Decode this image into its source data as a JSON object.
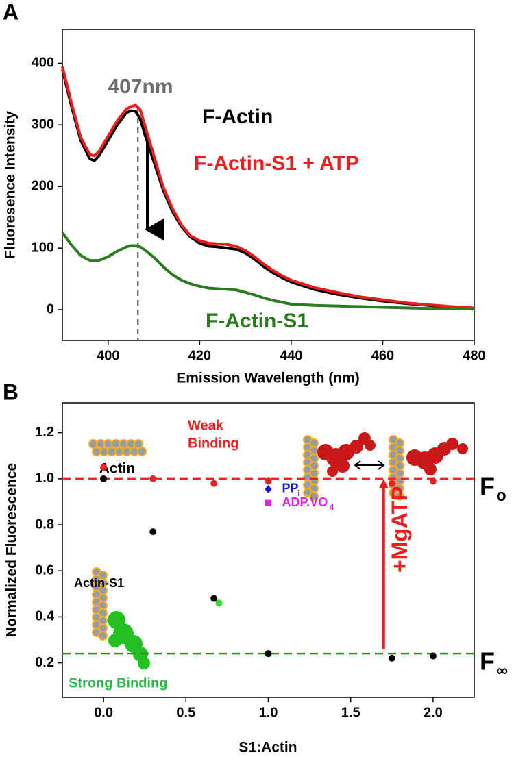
{
  "chart_data": [
    {
      "type": "line",
      "panel": "A",
      "x_label": "Emission Wavelength (nm)",
      "y_label": "Fluoresence Intensity",
      "xlim": [
        390,
        480
      ],
      "xticks": [
        400,
        420,
        440,
        460,
        480
      ],
      "ylim": [
        -50,
        455
      ],
      "yticks": [
        0,
        100,
        200,
        300,
        400
      ],
      "x": [
        390,
        392,
        394,
        396,
        397,
        398,
        400,
        402,
        404,
        405,
        406,
        407,
        408,
        410,
        412,
        414,
        416,
        418,
        420,
        422,
        424,
        426,
        428,
        430,
        432,
        434,
        436,
        438,
        440,
        445,
        450,
        455,
        460,
        465,
        470,
        475,
        480
      ],
      "series": [
        {
          "name": "F-Actin",
          "color": "#000000",
          "values": [
            390,
            330,
            275,
            245,
            242,
            250,
            275,
            300,
            320,
            323,
            322,
            310,
            285,
            240,
            195,
            160,
            135,
            118,
            108,
            103,
            102,
            100,
            98,
            92,
            82,
            70,
            60,
            52,
            45,
            33,
            25,
            19,
            14,
            10,
            7,
            4,
            2
          ]
        },
        {
          "name": "F-Actin-S1 + ATP",
          "color": "#ee1c1c",
          "values": [
            395,
            335,
            280,
            252,
            250,
            257,
            282,
            307,
            326,
            330,
            332,
            325,
            300,
            250,
            200,
            165,
            138,
            120,
            112,
            108,
            107,
            106,
            103,
            96,
            86,
            74,
            64,
            55,
            48,
            36,
            28,
            21,
            16,
            11,
            8,
            5,
            3
          ]
        },
        {
          "name": "F-Actin-S1",
          "color": "#2a7d1e",
          "values": [
            125,
            105,
            88,
            80,
            80,
            80,
            86,
            95,
            102,
            104,
            104,
            102,
            97,
            85,
            70,
            57,
            48,
            42,
            38,
            35,
            34,
            33,
            32,
            28,
            24,
            19,
            15,
            12,
            9,
            7,
            6,
            5,
            4,
            3,
            2,
            2,
            1
          ]
        }
      ],
      "annotations": [
        {
          "text": "407nm",
          "x": 406.5,
          "color": "#6e6e6e"
        }
      ]
    },
    {
      "type": "scatter",
      "panel": "B",
      "x_label": "S1:Actin",
      "y_label": "Normalized Fluorescence",
      "xlim": [
        -0.25,
        2.25
      ],
      "xticks": [
        {
          "value": 0,
          "label": "0.0"
        },
        0.5,
        {
          "value": 1,
          "label": "1.0"
        },
        1.5,
        {
          "value": 2,
          "label": "2.0"
        }
      ],
      "ylim": [
        0.05,
        1.33
      ],
      "yticks": [
        0.2,
        0.4,
        0.6,
        0.8,
        {
          "value": 1,
          "label": "1.0"
        },
        1.2
      ],
      "series": [
        {
          "color": "#000000",
          "marker": "circle",
          "x": [
            0,
            0.3,
            0.67,
            1.0,
            1.75,
            2.0
          ],
          "values": [
            1.0,
            0.77,
            0.48,
            0.24,
            0.22,
            0.23
          ]
        },
        {
          "color": "#ee2222",
          "marker": "circle",
          "x": [
            0,
            0.3,
            0.67,
            1.0,
            1.75,
            2.0
          ],
          "values": [
            1.05,
            1.0,
            0.98,
            0.99,
            0.98,
            0.99
          ]
        },
        {
          "color": "#33dd33",
          "marker": "circle",
          "x": [
            0.7
          ],
          "values": [
            0.46
          ]
        },
        {
          "name": "PP",
          "subscript": "i",
          "color": "#1414e6",
          "marker": "diamond",
          "x": [
            1.0
          ],
          "values": [
            0.955
          ]
        },
        {
          "name": "ADP.VO",
          "subscript": "4",
          "color": "#e61ee6",
          "marker": "square",
          "x": [
            1.0
          ],
          "values": [
            0.895
          ]
        }
      ],
      "hlines": [
        {
          "value": 1.0,
          "color": "#ee2222",
          "label": "F",
          "subscript": "o"
        },
        {
          "value": 0.24,
          "color": "#2a8a2a",
          "label": "F",
          "subscript": "∞"
        }
      ],
      "arrow": {
        "text": "+MgATP",
        "x": 1.7,
        "from": 0.26,
        "to": 1.0,
        "color": "#ee1c1c"
      },
      "annotations": [
        {
          "lines": [
            "Weak",
            "Binding"
          ],
          "color": "#ee2222"
        },
        {
          "lines": [
            "Actin"
          ],
          "color": "#000000"
        },
        {
          "lines": [
            "Actin-S1"
          ],
          "color": "#000000"
        },
        {
          "lines": [
            "Strong Binding"
          ],
          "color": "#2db84a"
        }
      ]
    }
  ]
}
